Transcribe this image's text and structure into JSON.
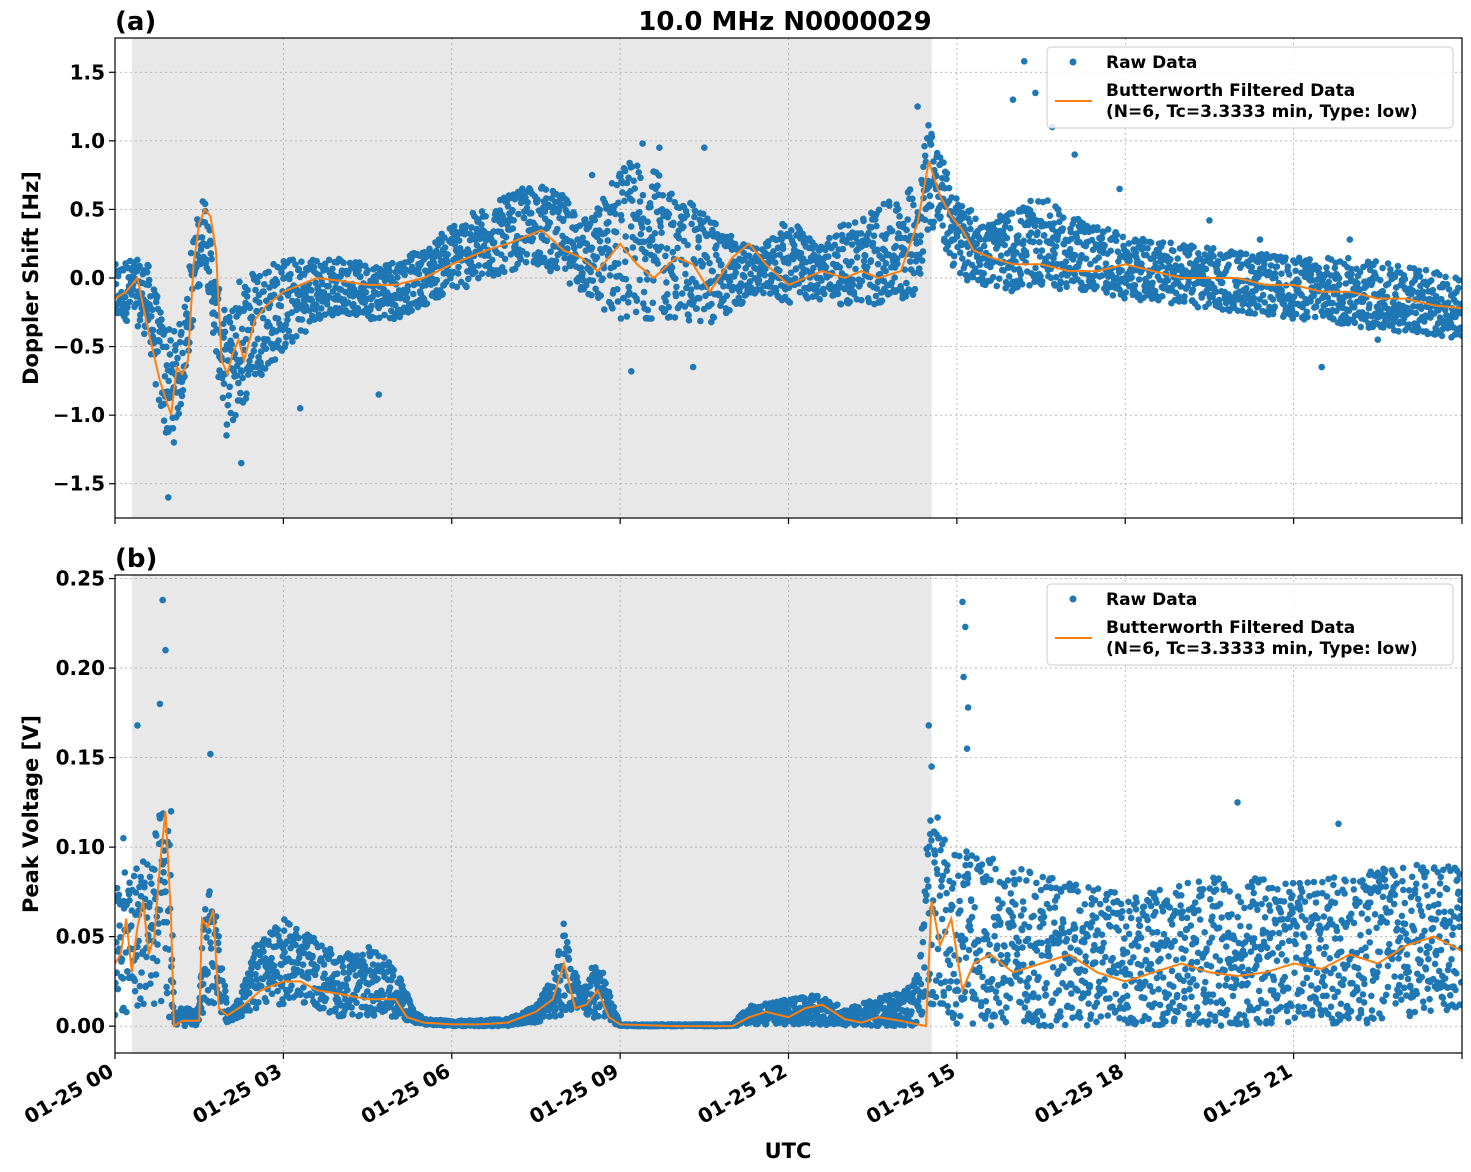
{
  "title": "10.0 MHz N0000029",
  "xlabel": "UTC",
  "x_tick_labels": [
    "01-25 00",
    "01-25 03",
    "01-25 06",
    "01-25 09",
    "01-25 12",
    "01-25 15",
    "01-25 18",
    "01-25 21"
  ],
  "colors": {
    "raw": "#1f77b4",
    "filtered": "#ff7f0e",
    "shade": "#e8e8e8"
  },
  "chart_data": [
    {
      "type": "scatter",
      "panel_label": "(a)",
      "ylabel": "Doppler Shift [Hz]",
      "xlim_hours": [
        0,
        24
      ],
      "ylim": [
        -1.75,
        1.75
      ],
      "y_ticks": [
        1.5,
        1.0,
        0.5,
        0.0,
        -0.5,
        -1.0,
        -1.5
      ],
      "y_tick_labels": [
        "1.5",
        "1.0",
        "0.5",
        "0.0",
        "−0.5",
        "−1.0",
        "−1.5"
      ],
      "grid": true,
      "shaded_interval_hours": [
        0.3,
        14.55
      ],
      "legend_position": "top-right",
      "legend": [
        "Raw Data",
        "Butterworth Filtered Data",
        "(N=6, Tc=3.3333 min, Type: low)"
      ],
      "series": [
        {
          "name": "Raw Data",
          "kind": "points",
          "band_x": [
            0.0,
            0.3,
            0.6,
            0.8,
            1.0,
            1.2,
            1.4,
            1.6,
            1.8,
            2.0,
            2.2,
            2.5,
            3.0,
            3.5,
            4.0,
            4.5,
            5.0,
            5.5,
            6.0,
            6.5,
            7.0,
            7.5,
            8.0,
            8.5,
            9.0,
            9.5,
            10.0,
            10.5,
            11.0,
            11.5,
            12.0,
            12.5,
            13.0,
            13.5,
            14.0,
            14.3,
            14.5,
            14.8,
            15.0,
            15.5,
            16.0,
            16.5,
            17.0,
            17.5,
            18.0,
            19.0,
            20.0,
            21.0,
            22.0,
            23.0,
            24.0
          ],
          "band_low": [
            -0.35,
            -0.3,
            -0.45,
            -1.0,
            -1.3,
            -0.9,
            -0.3,
            0.15,
            -0.6,
            -1.2,
            -1.0,
            -0.75,
            -0.55,
            -0.35,
            -0.25,
            -0.3,
            -0.3,
            -0.2,
            -0.1,
            -0.05,
            0.05,
            0.1,
            0.0,
            -0.2,
            -0.3,
            -0.3,
            -0.3,
            -0.35,
            -0.25,
            -0.1,
            -0.2,
            -0.15,
            -0.2,
            -0.2,
            -0.2,
            -0.1,
            0.4,
            0.2,
            0.0,
            -0.05,
            -0.1,
            -0.05,
            -0.1,
            -0.1,
            -0.15,
            -0.2,
            -0.25,
            -0.3,
            -0.35,
            -0.4,
            -0.45
          ],
          "band_high": [
            0.1,
            0.15,
            0.1,
            -0.2,
            -0.4,
            -0.3,
            0.35,
            0.65,
            0.0,
            -0.3,
            0.0,
            0.1,
            0.15,
            0.15,
            0.15,
            0.1,
            0.15,
            0.2,
            0.4,
            0.5,
            0.6,
            0.7,
            0.6,
            0.45,
            0.85,
            0.85,
            0.6,
            0.5,
            0.3,
            0.2,
            0.45,
            0.25,
            0.4,
            0.5,
            0.6,
            0.7,
            1.2,
            0.8,
            0.6,
            0.4,
            0.5,
            0.6,
            0.45,
            0.4,
            0.3,
            0.25,
            0.2,
            0.15,
            0.15,
            0.1,
            0.0
          ],
          "outliers": [
            [
              0.95,
              -1.6
            ],
            [
              2.25,
              -1.35
            ],
            [
              3.3,
              -0.95
            ],
            [
              4.7,
              -0.85
            ],
            [
              8.5,
              0.75
            ],
            [
              9.4,
              0.98
            ],
            [
              9.7,
              0.95
            ],
            [
              10.5,
              0.95
            ],
            [
              10.3,
              -0.65
            ],
            [
              9.2,
              -0.68
            ],
            [
              14.3,
              1.25
            ],
            [
              16.2,
              1.58
            ],
            [
              16.4,
              1.35
            ],
            [
              16.0,
              1.3
            ],
            [
              16.7,
              1.1
            ],
            [
              17.1,
              0.9
            ],
            [
              17.9,
              0.65
            ],
            [
              19.5,
              0.42
            ],
            [
              20.4,
              0.28
            ],
            [
              21.5,
              -0.65
            ],
            [
              22.5,
              -0.45
            ],
            [
              22.0,
              0.28
            ]
          ]
        },
        {
          "name": "Butterworth Filtered Data",
          "kind": "line",
          "x": [
            0.0,
            0.2,
            0.4,
            0.6,
            0.8,
            1.0,
            1.1,
            1.2,
            1.3,
            1.4,
            1.5,
            1.6,
            1.7,
            1.8,
            1.9,
            2.0,
            2.1,
            2.2,
            2.3,
            2.5,
            2.7,
            3.0,
            3.3,
            3.6,
            4.0,
            4.5,
            5.0,
            5.5,
            6.0,
            6.3,
            6.6,
            7.0,
            7.3,
            7.6,
            8.0,
            8.3,
            8.6,
            9.0,
            9.3,
            9.6,
            10.0,
            10.3,
            10.6,
            11.0,
            11.3,
            11.6,
            12.0,
            12.3,
            12.6,
            13.0,
            13.3,
            13.6,
            14.0,
            14.3,
            14.5,
            14.7,
            14.9,
            15.1,
            15.3,
            15.6,
            16.0,
            16.5,
            17.0,
            17.5,
            18.0,
            18.5,
            19.0,
            19.5,
            20.0,
            20.5,
            21.0,
            21.5,
            22.0,
            22.5,
            23.0,
            23.5,
            24.0
          ],
          "y": [
            -0.15,
            -0.1,
            0.0,
            -0.4,
            -0.75,
            -1.0,
            -0.65,
            -0.7,
            -0.6,
            0.1,
            0.4,
            0.5,
            0.45,
            0.2,
            -0.6,
            -0.7,
            -0.55,
            -0.45,
            -0.6,
            -0.3,
            -0.2,
            -0.1,
            -0.05,
            0.0,
            -0.02,
            -0.05,
            -0.05,
            0.0,
            0.1,
            0.15,
            0.2,
            0.25,
            0.3,
            0.35,
            0.2,
            0.15,
            0.05,
            0.25,
            0.1,
            0.0,
            0.15,
            0.1,
            -0.1,
            0.15,
            0.25,
            0.1,
            -0.05,
            0.0,
            0.05,
            0.0,
            0.05,
            0.0,
            0.05,
            0.4,
            0.85,
            0.6,
            0.45,
            0.35,
            0.2,
            0.15,
            0.1,
            0.1,
            0.05,
            0.05,
            0.1,
            0.05,
            0.0,
            0.0,
            0.0,
            -0.05,
            -0.05,
            -0.1,
            -0.1,
            -0.15,
            -0.15,
            -0.2,
            -0.22
          ]
        }
      ]
    },
    {
      "type": "scatter",
      "panel_label": "(b)",
      "ylabel": "Peak Voltage [V]",
      "xlim_hours": [
        0,
        24
      ],
      "ylim": [
        -0.015,
        0.252
      ],
      "y_ticks": [
        0.0,
        0.05,
        0.1,
        0.15,
        0.2,
        0.25
      ],
      "y_tick_labels": [
        "0.00",
        "0.05",
        "0.10",
        "0.15",
        "0.20",
        "0.25"
      ],
      "grid": true,
      "shaded_interval_hours": [
        0.3,
        14.55
      ],
      "legend_position": "top-right",
      "legend": [
        "Raw Data",
        "Butterworth Filtered Data",
        "(N=6, Tc=3.3333 min, Type: low)"
      ],
      "series": [
        {
          "name": "Raw Data",
          "kind": "points",
          "band_x": [
            0.0,
            0.3,
            0.6,
            0.9,
            1.0,
            1.05,
            1.5,
            1.6,
            1.8,
            2.0,
            2.2,
            2.5,
            3.0,
            3.5,
            4.0,
            4.5,
            5.0,
            5.3,
            5.5,
            6.0,
            7.0,
            7.5,
            7.8,
            8.0,
            8.3,
            8.6,
            8.9,
            9.0,
            10.0,
            11.0,
            11.3,
            12.0,
            12.5,
            13.0,
            13.5,
            14.0,
            14.3,
            14.5,
            14.6,
            15.0,
            16.0,
            17.0,
            18.0,
            19.0,
            20.0,
            21.0,
            22.0,
            23.0,
            24.0
          ],
          "band_low": [
            0.0,
            0.01,
            0.01,
            0.005,
            0.0,
            0.0,
            0.0,
            0.01,
            0.01,
            0.002,
            0.005,
            0.008,
            0.012,
            0.012,
            0.005,
            0.005,
            0.005,
            0.002,
            0.001,
            0.0,
            0.0,
            0.002,
            0.005,
            0.005,
            0.005,
            0.003,
            0.001,
            0.0,
            0.0,
            0.0,
            0.001,
            0.001,
            0.001,
            0.0,
            0.0,
            0.0,
            0.0,
            0.01,
            0.01,
            0.0,
            0.0,
            0.0,
            0.0,
            0.0,
            0.0,
            0.0,
            0.0,
            0.005,
            0.01
          ],
          "band_high": [
            0.08,
            0.09,
            0.1,
            0.13,
            0.11,
            0.01,
            0.01,
            0.08,
            0.07,
            0.01,
            0.015,
            0.045,
            0.06,
            0.05,
            0.04,
            0.045,
            0.035,
            0.01,
            0.004,
            0.003,
            0.004,
            0.012,
            0.03,
            0.06,
            0.02,
            0.04,
            0.01,
            0.001,
            0.001,
            0.001,
            0.012,
            0.015,
            0.018,
            0.01,
            0.015,
            0.02,
            0.03,
            0.12,
            0.12,
            0.1,
            0.09,
            0.08,
            0.075,
            0.08,
            0.085,
            0.08,
            0.085,
            0.09,
            0.09
          ],
          "outliers": [
            [
              0.4,
              0.168
            ],
            [
              0.85,
              0.238
            ],
            [
              0.9,
              0.21
            ],
            [
              0.8,
              0.18
            ],
            [
              1.7,
              0.152
            ],
            [
              14.5,
              0.168
            ],
            [
              14.55,
              0.145
            ],
            [
              15.1,
              0.237
            ],
            [
              15.15,
              0.223
            ],
            [
              15.12,
              0.195
            ],
            [
              15.2,
              0.178
            ],
            [
              15.18,
              0.155
            ],
            [
              20.0,
              0.125
            ],
            [
              21.8,
              0.113
            ],
            [
              0.15,
              0.105
            ],
            [
              1.0,
              0.12
            ]
          ]
        },
        {
          "name": "Butterworth Filtered Data",
          "kind": "line",
          "x": [
            0.0,
            0.1,
            0.2,
            0.3,
            0.4,
            0.5,
            0.6,
            0.7,
            0.8,
            0.9,
            1.0,
            1.05,
            1.2,
            1.5,
            1.55,
            1.65,
            1.75,
            1.85,
            2.0,
            2.3,
            2.6,
            3.0,
            3.3,
            3.6,
            4.0,
            4.5,
            5.0,
            5.2,
            5.5,
            6.0,
            6.5,
            7.0,
            7.5,
            7.8,
            8.0,
            8.2,
            8.4,
            8.6,
            8.8,
            9.0,
            10.0,
            11.0,
            11.3,
            11.6,
            12.0,
            12.3,
            12.6,
            13.0,
            13.3,
            13.6,
            14.0,
            14.3,
            14.45,
            14.55,
            14.7,
            14.9,
            15.1,
            15.3,
            15.6,
            16.0,
            16.5,
            17.0,
            17.5,
            18.0,
            18.5,
            19.0,
            19.5,
            20.0,
            20.5,
            21.0,
            21.5,
            22.0,
            22.5,
            23.0,
            23.5,
            24.0
          ],
          "y": [
            0.035,
            0.04,
            0.06,
            0.03,
            0.055,
            0.07,
            0.04,
            0.05,
            0.09,
            0.12,
            0.06,
            0.0,
            0.003,
            0.003,
            0.06,
            0.055,
            0.065,
            0.01,
            0.006,
            0.012,
            0.02,
            0.025,
            0.025,
            0.02,
            0.018,
            0.015,
            0.015,
            0.005,
            0.002,
            0.001,
            0.001,
            0.002,
            0.008,
            0.015,
            0.035,
            0.01,
            0.012,
            0.02,
            0.005,
            0.001,
            0.0,
            0.0,
            0.005,
            0.008,
            0.005,
            0.01,
            0.012,
            0.004,
            0.002,
            0.005,
            0.003,
            0.001,
            0.0,
            0.07,
            0.045,
            0.06,
            0.02,
            0.035,
            0.04,
            0.03,
            0.035,
            0.04,
            0.03,
            0.025,
            0.03,
            0.035,
            0.03,
            0.028,
            0.03,
            0.035,
            0.032,
            0.04,
            0.035,
            0.045,
            0.05,
            0.042
          ]
        }
      ]
    }
  ]
}
